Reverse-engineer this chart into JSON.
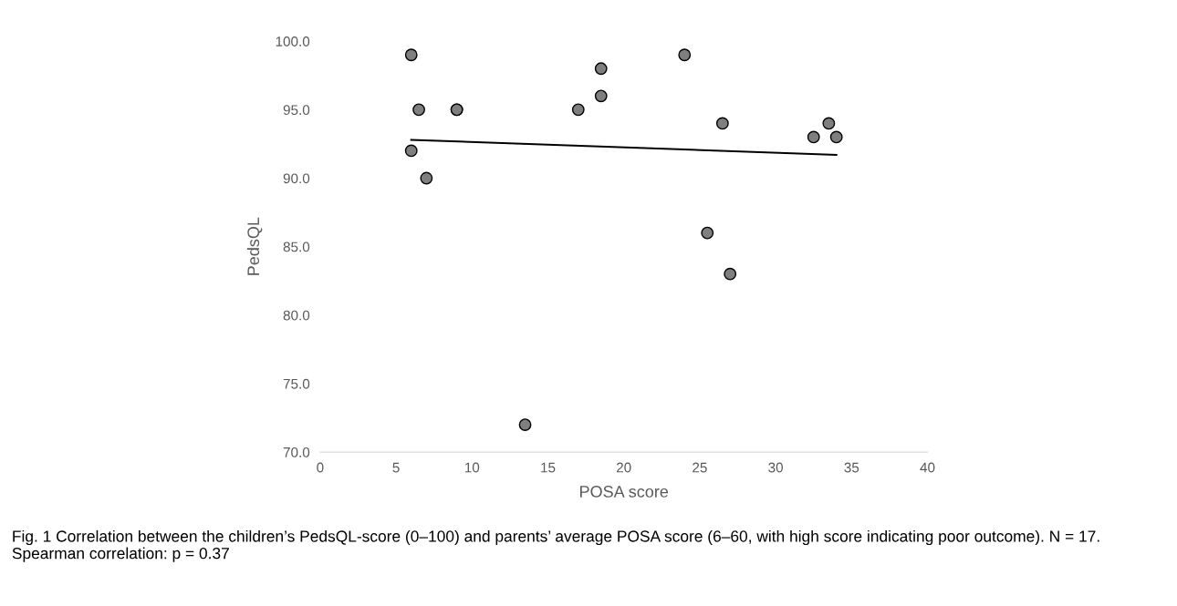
{
  "chart_data": {
    "type": "scatter",
    "xlabel": "POSA score",
    "ylabel": "PedsQL",
    "xlim": [
      0,
      40
    ],
    "xticks": [
      0,
      5,
      10,
      15,
      20,
      25,
      30,
      35,
      40
    ],
    "ylim": [
      70,
      100
    ],
    "yticks": [
      {
        "value": 70,
        "label": "70.0"
      },
      {
        "value": 75,
        "label": "75.0"
      },
      {
        "value": 80,
        "label": "80.0"
      },
      {
        "value": 85,
        "label": "85.0"
      },
      {
        "value": 90,
        "label": "90.0"
      },
      {
        "value": 95,
        "label": "95.0"
      },
      {
        "value": 100,
        "label": "100.0"
      }
    ],
    "grid": false,
    "legend": false,
    "series": [
      {
        "marker": "circle",
        "color": "#7f7f7f",
        "x": [
          6,
          6,
          6.5,
          7,
          9,
          9,
          13.5,
          17,
          18.5,
          18.5,
          24,
          25.5,
          26.5,
          27,
          32.5,
          33.5,
          34
        ],
        "values": [
          99,
          92,
          95,
          90,
          95,
          95,
          72,
          95,
          98,
          96,
          99,
          86,
          94,
          83,
          93,
          94,
          93
        ]
      },
      {
        "type": "line",
        "marker": "none",
        "color": "#000000",
        "line_style": "solid",
        "x": [
          6,
          34
        ],
        "values": [
          92.8,
          91.7
        ]
      }
    ],
    "annotations": [
      "Fig. 1 Correlation between the children’s PedsQL-score (0–100) and parents’ average POSA score (6–60, with high score indicating poor outcome). N = 17. Spearman correlation: p = 0.37"
    ]
  }
}
